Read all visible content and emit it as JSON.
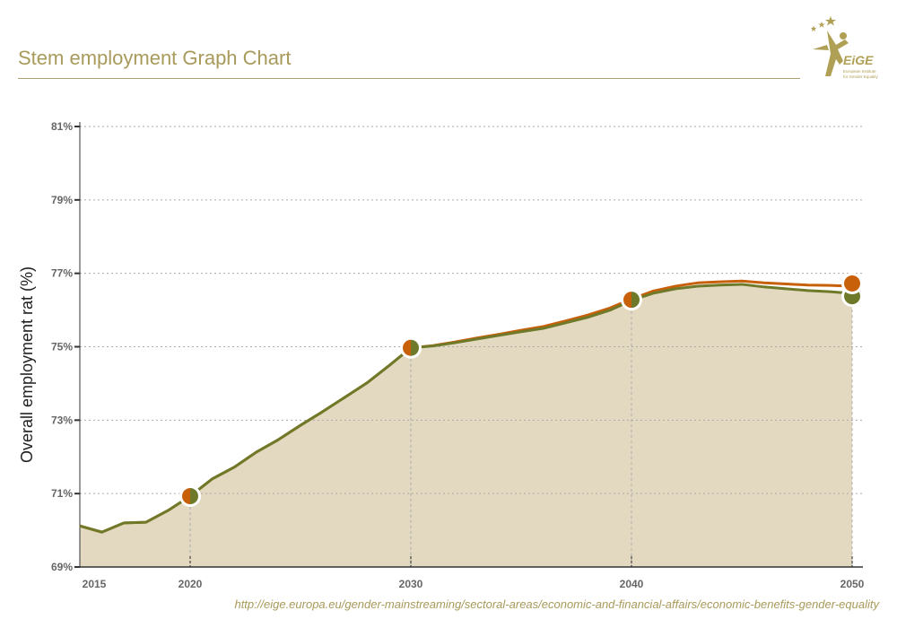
{
  "header": {
    "title": "Stem employment Graph Chart",
    "logo_text": "EIGE",
    "logo_subtitle": "European Institute for Gender Equality"
  },
  "source_url": "http://eige.europa.eu/gender-mainstreaming/sectoral-areas/economic-and-financial-affairs/economic-benefits-gender-equality",
  "chart_data": {
    "type": "area",
    "title": "Stem employment Graph Chart",
    "ylabel": "Overall employment rat (%)",
    "xlabel": "",
    "xlim": [
      2015,
      2050
    ],
    "ylim": [
      69,
      81
    ],
    "x_ticks": [
      "2015",
      "2020",
      "2030",
      "2040",
      "2050"
    ],
    "y_ticks": [
      "69%",
      "71%",
      "73%",
      "75%",
      "77%",
      "79%",
      "81%"
    ],
    "grid": true,
    "marker_years": [
      2020,
      2030,
      2040,
      2050
    ],
    "colors": {
      "orange": "#c8600a",
      "green": "#6e7a2a",
      "fill": "#e3d9c0",
      "text": "#666666"
    },
    "x": [
      2015,
      2016,
      2017,
      2018,
      2019,
      2020,
      2021,
      2022,
      2023,
      2024,
      2025,
      2026,
      2027,
      2028,
      2029,
      2030,
      2031,
      2032,
      2033,
      2034,
      2035,
      2036,
      2037,
      2038,
      2039,
      2040,
      2041,
      2042,
      2043,
      2044,
      2045,
      2046,
      2047,
      2048,
      2049,
      2050
    ],
    "series": [
      {
        "color": "#c8600a",
        "values": [
          70.12,
          69.95,
          70.2,
          70.22,
          70.54,
          70.93,
          71.4,
          71.72,
          72.13,
          72.47,
          72.86,
          73.23,
          73.62,
          74.01,
          74.48,
          74.97,
          75.03,
          75.13,
          75.24,
          75.34,
          75.45,
          75.55,
          75.7,
          75.86,
          76.05,
          76.3,
          76.52,
          76.65,
          76.74,
          76.77,
          76.79,
          76.74,
          76.71,
          76.68,
          76.67,
          76.65
        ]
      },
      {
        "color": "#6e7a2a",
        "values": [
          70.12,
          69.95,
          70.2,
          70.22,
          70.54,
          70.93,
          71.4,
          71.72,
          72.13,
          72.47,
          72.86,
          73.23,
          73.62,
          74.01,
          74.48,
          74.97,
          75.02,
          75.11,
          75.21,
          75.31,
          75.41,
          75.5,
          75.65,
          75.8,
          75.99,
          76.26,
          76.46,
          76.58,
          76.65,
          76.68,
          76.7,
          76.63,
          76.58,
          76.53,
          76.5,
          76.45
        ]
      }
    ]
  }
}
